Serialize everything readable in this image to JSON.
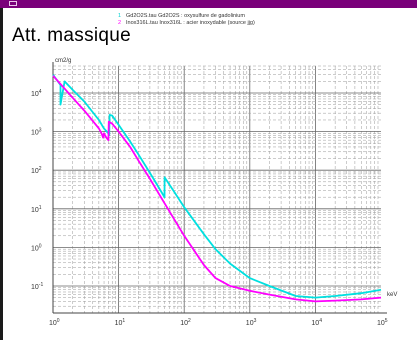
{
  "window": {
    "title_bar_color": "#7a007a"
  },
  "title": "Att. massique",
  "legend": [
    {
      "num": "1",
      "text": "Gd2O2S.tau  Gd2O2S : oxysulfure de gadolinium",
      "color": "#00d0d0"
    },
    {
      "num": "2",
      "text": "Inox316L.tau  Inox316L : acier inoxydable (source jjg)",
      "color": "#ff00ff"
    }
  ],
  "y_unit": "cm2/g",
  "x_unit": "keV",
  "chart_data": {
    "type": "line",
    "title": "Att. massique",
    "xlabel": "keV",
    "ylabel": "cm2/g",
    "x_scale": "log",
    "y_scale": "log",
    "xlim": [
      1,
      100000
    ],
    "ylim": [
      0.02,
      50000
    ],
    "grid": true,
    "x_tick_labels": [
      {
        "value": 1,
        "base": "10",
        "exp": "0"
      },
      {
        "value": 10,
        "base": "10",
        "exp": "1"
      },
      {
        "value": 100,
        "base": "10",
        "exp": "2"
      },
      {
        "value": 1000,
        "base": "10",
        "exp": "3"
      },
      {
        "value": 10000,
        "base": "10",
        "exp": "4"
      },
      {
        "value": 100000,
        "base": "10",
        "exp": "5"
      }
    ],
    "y_tick_labels": [
      {
        "value": 0.1,
        "base": "10",
        "exp": "-1"
      },
      {
        "value": 1,
        "base": "10",
        "exp": "0"
      },
      {
        "value": 10,
        "base": "10",
        "exp": "1"
      },
      {
        "value": 100,
        "base": "10",
        "exp": "2"
      },
      {
        "value": 1000,
        "base": "10",
        "exp": "3"
      },
      {
        "value": 10000,
        "base": "10",
        "exp": "4"
      }
    ],
    "series": [
      {
        "name": "Gd2O2S.tau  Gd2O2S : oxysulfure de gadolinium",
        "color": "#00e0e0",
        "x": [
          1.0,
          1.3,
          1.3,
          1.5,
          2.0,
          3.0,
          5.0,
          6.0,
          7.0,
          7.2,
          7.3,
          8.0,
          10,
          15,
          20,
          30,
          40,
          50,
          50.3,
          70,
          100,
          200,
          300,
          500,
          1000,
          2000,
          5000,
          10000,
          20000,
          50000,
          100000
        ],
        "y": [
          30000,
          16000,
          5000,
          20000,
          12000,
          6000,
          2000,
          1200,
          900,
          800,
          2700,
          2600,
          1500,
          550,
          260,
          85,
          38,
          20,
          65,
          28,
          11,
          2.2,
          0.9,
          0.38,
          0.16,
          0.1,
          0.055,
          0.05,
          0.055,
          0.065,
          0.08
        ]
      },
      {
        "name": "Inox316L.tau  Inox316L : acier inoxydable (source jjg)",
        "color": "#ff00ff",
        "x": [
          1.0,
          1.5,
          2.0,
          3.0,
          5.0,
          5.5,
          5.8,
          6.0,
          6.5,
          7.0,
          7.1,
          8.0,
          10,
          15,
          20,
          30,
          50,
          100,
          200,
          300,
          500,
          1000,
          2000,
          5000,
          10000,
          20000,
          50000,
          100000
        ],
        "y": [
          28000,
          13000,
          7500,
          3500,
          1200,
          900,
          700,
          900,
          700,
          600,
          1800,
          1600,
          1000,
          400,
          180,
          60,
          14,
          2.0,
          0.35,
          0.16,
          0.1,
          0.075,
          0.06,
          0.045,
          0.04,
          0.042,
          0.045,
          0.05
        ]
      }
    ]
  }
}
